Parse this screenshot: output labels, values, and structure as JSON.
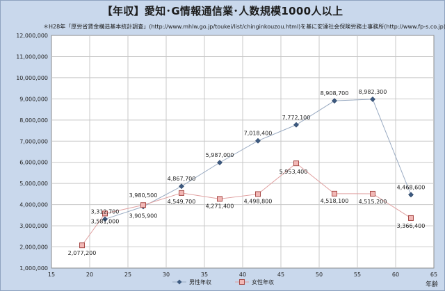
{
  "chart_data": {
    "type": "line",
    "title": "【年収】愛知･G情報通信業･人数規模1000人以上",
    "subtitle": "＊H28年「厚労省賃金構造基本統計調査」(http://www.mhlw.go.jp/toukei/list/chinginkouzou.html)を基に安達社会保険労務士事務所(http://www.fp-s.co.jp)が作成",
    "xlabel": "年齢",
    "ylabel": "",
    "xlim": [
      15,
      65
    ],
    "ylim": [
      1000000,
      12000000
    ],
    "x_ticks": [
      "15",
      "20",
      "25",
      "30",
      "35",
      "40",
      "45",
      "50",
      "55",
      "60",
      "65"
    ],
    "y_ticks": [
      "1,000,000",
      "2,000,000",
      "3,000,000",
      "4,000,000",
      "5,000,000",
      "6,000,000",
      "7,000,000",
      "8,000,000",
      "9,000,000",
      "10,000,000",
      "11,000,000",
      "12,000,000"
    ],
    "grid": true,
    "legend_position": "bottom",
    "series": [
      {
        "name": "男性年収",
        "color": "#3d5a80",
        "marker": "diamond",
        "x": [
          22,
          27,
          32,
          37,
          42,
          47,
          52,
          57,
          62
        ],
        "y": [
          3312700,
          3905900,
          4867700,
          5987000,
          7018400,
          7772100,
          8908700,
          8982300,
          4468600
        ],
        "labels": [
          "3,312,700",
          "3,905,900",
          "4,867,700",
          "5,987,000",
          "7,018,400",
          "7,772,100",
          "8,908,700",
          "8,982,300",
          "4,468,600"
        ]
      },
      {
        "name": "女性年収",
        "color": "#c0504d",
        "marker": "square",
        "x": [
          19,
          22,
          27,
          32,
          37,
          42,
          47,
          52,
          57,
          62
        ],
        "y": [
          2077200,
          3581000,
          3980500,
          4549700,
          4271400,
          4498800,
          5953400,
          4518100,
          4515200,
          3366400
        ],
        "labels": [
          "2,077,200",
          "3,581,000",
          "3,980,500",
          "4,549,700",
          "4,271,400",
          "4,498,800",
          "5,953,400",
          "4,518,100",
          "4,515,200",
          "3,366,400"
        ]
      }
    ]
  }
}
